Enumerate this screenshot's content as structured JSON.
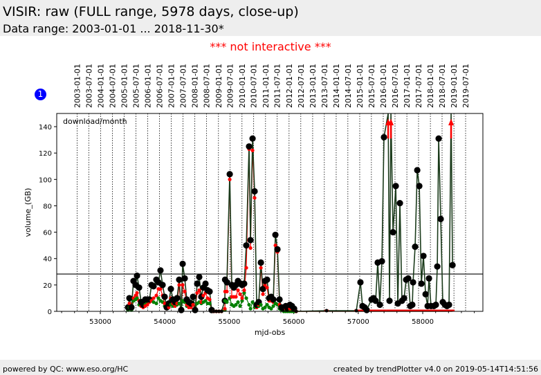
{
  "header": {
    "title": "VISIR: raw (FULL range, 5978 days, close-up)",
    "data_range": "Data range: 2003-01-01 ... 2018-11-30*"
  },
  "notice": "*** not interactive ***",
  "badge": "1",
  "footer": {
    "left": "powered by QC: www.eso.org/HC",
    "right": "created by trendPlotter v4.0 on 2019-05-14T14:51:56"
  },
  "chart_data": {
    "type": "line",
    "xlabel": "mjd-obs",
    "ylabel": "volume_(GB)",
    "annotation": "download/month",
    "xlim": [
      52324,
      58933
    ],
    "ylim": [
      0,
      150
    ],
    "xticks": [
      53000,
      54000,
      55000,
      56000,
      57000,
      58000
    ],
    "yticks": [
      0,
      20,
      40,
      60,
      80,
      100,
      120,
      140
    ],
    "reference_line": 28.3,
    "colors": {
      "total": "#000000",
      "red": "#ff0000",
      "green": "#008000",
      "line": "#1a3a1a"
    },
    "date_labels": [
      {
        "label": "2003-01-01",
        "mjd": 52640
      },
      {
        "label": "2003-07-01",
        "mjd": 52821
      },
      {
        "label": "2004-01-01",
        "mjd": 53005
      },
      {
        "label": "2004-07-01",
        "mjd": 53187
      },
      {
        "label": "2005-01-01",
        "mjd": 53371
      },
      {
        "label": "2005-07-01",
        "mjd": 53552
      },
      {
        "label": "2006-01-01",
        "mjd": 53736
      },
      {
        "label": "2006-07-01",
        "mjd": 53917
      },
      {
        "label": "2007-01-01",
        "mjd": 54101
      },
      {
        "label": "2007-07-01",
        "mjd": 54282
      },
      {
        "label": "2008-01-01",
        "mjd": 54466
      },
      {
        "label": "2008-07-01",
        "mjd": 54648
      },
      {
        "label": "2009-01-01",
        "mjd": 54832
      },
      {
        "label": "2009-07-01",
        "mjd": 55013
      },
      {
        "label": "2010-01-01",
        "mjd": 55197
      },
      {
        "label": "2010-07-01",
        "mjd": 55378
      },
      {
        "label": "2011-01-01",
        "mjd": 55562
      },
      {
        "label": "2011-07-01",
        "mjd": 55743
      },
      {
        "label": "2012-01-01",
        "mjd": 55927
      },
      {
        "label": "2012-07-01",
        "mjd": 56109
      },
      {
        "label": "2013-01-01",
        "mjd": 56293
      },
      {
        "label": "2013-07-01",
        "mjd": 56474
      },
      {
        "label": "2014-01-01",
        "mjd": 56658
      },
      {
        "label": "2014-07-01",
        "mjd": 56839
      },
      {
        "label": "2015-01-01",
        "mjd": 57023
      },
      {
        "label": "2015-07-01",
        "mjd": 57204
      },
      {
        "label": "2016-01-01",
        "mjd": 57388
      },
      {
        "label": "2016-07-01",
        "mjd": 57570
      },
      {
        "label": "2017-01-01",
        "mjd": 57754
      },
      {
        "label": "2017-07-01",
        "mjd": 57935
      },
      {
        "label": "2018-01-01",
        "mjd": 58119
      },
      {
        "label": "2018-07-01",
        "mjd": 58300
      },
      {
        "label": "2019-01-01",
        "mjd": 58484
      },
      {
        "label": "2019-07-01",
        "mjd": 58665
      }
    ],
    "points_columns": [
      "mjd",
      "total",
      "red",
      "green"
    ],
    "points": [
      [
        53429,
        3,
        2,
        1
      ],
      [
        53451,
        10,
        6,
        3
      ],
      [
        53483,
        3,
        2,
        1
      ],
      [
        53515,
        23,
        10,
        8
      ],
      [
        53547,
        20,
        12,
        9
      ],
      [
        53569,
        27,
        14,
        10
      ],
      [
        53601,
        18,
        8,
        5
      ],
      [
        53633,
        7,
        4,
        5
      ],
      [
        53665,
        5,
        3,
        4
      ],
      [
        53697,
        9,
        4,
        5
      ],
      [
        53730,
        9,
        5,
        6
      ],
      [
        53762,
        9,
        7,
        8
      ],
      [
        53794,
        20,
        8,
        8
      ],
      [
        53826,
        19,
        10,
        7
      ],
      [
        53869,
        24,
        12,
        6
      ],
      [
        53901,
        22,
        17,
        10
      ],
      [
        53933,
        31,
        17,
        8
      ],
      [
        53966,
        20,
        12,
        7
      ],
      [
        53998,
        11,
        6,
        4
      ],
      [
        54030,
        3,
        2,
        3
      ],
      [
        54062,
        6,
        3,
        4
      ],
      [
        54094,
        17,
        10,
        5
      ],
      [
        54127,
        9,
        6,
        4
      ],
      [
        54159,
        7,
        4,
        5
      ],
      [
        54191,
        10,
        6,
        5
      ],
      [
        54223,
        24,
        20,
        6
      ],
      [
        54255,
        1,
        1,
        1
      ],
      [
        54277,
        36,
        20,
        8
      ],
      [
        54309,
        25,
        15,
        7
      ],
      [
        54341,
        9,
        5,
        4
      ],
      [
        54373,
        7,
        3,
        3
      ],
      [
        54406,
        6,
        3,
        4
      ],
      [
        54438,
        11,
        5,
        5
      ],
      [
        54470,
        1,
        1,
        1
      ],
      [
        54502,
        21,
        14,
        6
      ],
      [
        54534,
        26,
        16,
        7
      ],
      [
        54566,
        11,
        7,
        6
      ],
      [
        54598,
        18,
        12,
        7
      ],
      [
        54631,
        21,
        14,
        8
      ],
      [
        54663,
        16,
        10,
        6
      ],
      [
        54695,
        15,
        9,
        6
      ],
      [
        54727,
        1,
        1,
        1
      ],
      [
        54760,
        0,
        0,
        0
      ],
      [
        54800,
        0,
        0,
        0
      ],
      [
        54840,
        0,
        0,
        0
      ],
      [
        54880,
        0,
        0,
        0
      ],
      [
        54931,
        8,
        2,
        1
      ],
      [
        54935,
        24,
        15,
        8
      ],
      [
        54963,
        22,
        15,
        7
      ],
      [
        55007,
        104,
        100,
        10
      ],
      [
        55039,
        20,
        11,
        5
      ],
      [
        55071,
        18,
        11,
        4
      ],
      [
        55103,
        20,
        11,
        5
      ],
      [
        55135,
        23,
        16,
        7
      ],
      [
        55167,
        21,
        13,
        4
      ],
      [
        55199,
        20,
        10,
        8
      ],
      [
        55231,
        21,
        16,
        14
      ],
      [
        55264,
        50,
        33,
        10
      ],
      [
        55307,
        125,
        123,
        5
      ],
      [
        55329,
        54,
        48,
        2
      ],
      [
        55361,
        131,
        122,
        7
      ],
      [
        55393,
        91,
        86,
        3
      ],
      [
        55425,
        5,
        3,
        3
      ],
      [
        55457,
        7,
        5,
        4
      ],
      [
        55490,
        37,
        33,
        5
      ],
      [
        55522,
        17,
        13,
        2
      ],
      [
        55554,
        23,
        20,
        3
      ],
      [
        55586,
        24,
        18,
        5
      ],
      [
        55618,
        10,
        8,
        3
      ],
      [
        55650,
        11,
        8,
        2
      ],
      [
        55683,
        9,
        7,
        4
      ],
      [
        55715,
        58,
        50,
        6
      ],
      [
        55747,
        47,
        45,
        5
      ],
      [
        55779,
        9,
        5,
        2
      ],
      [
        55811,
        3,
        2,
        1
      ],
      [
        55844,
        2,
        1,
        0
      ],
      [
        55876,
        4,
        2,
        0
      ],
      [
        55908,
        2,
        1,
        0
      ],
      [
        55940,
        5,
        2,
        0
      ],
      [
        55972,
        4,
        2,
        0
      ],
      [
        56005,
        2,
        1,
        0
      ],
      [
        56037,
        0,
        0,
        0
      ],
      [
        56509,
        0.5,
        0,
        0
      ],
      [
        56970,
        0.5,
        0,
        0
      ],
      [
        57034,
        22,
        0,
        0
      ],
      [
        57066,
        4,
        0,
        0
      ],
      [
        57098,
        3,
        0,
        0
      ],
      [
        57131,
        1,
        0,
        0
      ],
      [
        57206,
        9,
        0,
        0
      ],
      [
        57238,
        10,
        0,
        0
      ],
      [
        57270,
        8,
        0,
        0
      ],
      [
        57302,
        37,
        0,
        0
      ],
      [
        57335,
        5,
        0,
        0
      ],
      [
        57367,
        38,
        0,
        0
      ],
      [
        57399,
        132,
        0,
        0
      ],
      [
        57464,
        160,
        0,
        0
      ],
      [
        57485,
        8,
        0,
        0
      ],
      [
        57507,
        160,
        0,
        0
      ],
      [
        57539,
        60,
        0,
        0
      ],
      [
        57582,
        95,
        0,
        0
      ],
      [
        57614,
        6,
        0,
        0
      ],
      [
        57646,
        82,
        0,
        0
      ],
      [
        57678,
        8,
        0,
        0
      ],
      [
        57711,
        10,
        0,
        0
      ],
      [
        57743,
        24,
        0,
        0
      ],
      [
        57775,
        25,
        0,
        0
      ],
      [
        57807,
        4,
        0,
        0
      ],
      [
        57839,
        5,
        0,
        0
      ],
      [
        57850,
        22,
        0,
        0
      ],
      [
        57882,
        49,
        0,
        0
      ],
      [
        57915,
        107,
        0,
        0
      ],
      [
        57947,
        95,
        0,
        0
      ],
      [
        57979,
        21,
        0,
        0
      ],
      [
        58011,
        42,
        0,
        0
      ],
      [
        58044,
        13,
        0,
        0
      ],
      [
        58076,
        4,
        0,
        0
      ],
      [
        58097,
        25,
        0,
        0
      ],
      [
        58129,
        4,
        0,
        0
      ],
      [
        58172,
        4,
        0,
        0
      ],
      [
        58204,
        5,
        0,
        0
      ],
      [
        58226,
        34,
        0,
        0
      ],
      [
        58247,
        131,
        0,
        0
      ],
      [
        58279,
        70,
        0,
        0
      ],
      [
        58311,
        7,
        0,
        0
      ],
      [
        58344,
        5,
        0,
        0
      ],
      [
        58376,
        4,
        0,
        0
      ],
      [
        58408,
        5,
        0,
        0
      ],
      [
        58440,
        160,
        0,
        0
      ],
      [
        58462,
        35,
        0,
        0
      ]
    ]
  }
}
